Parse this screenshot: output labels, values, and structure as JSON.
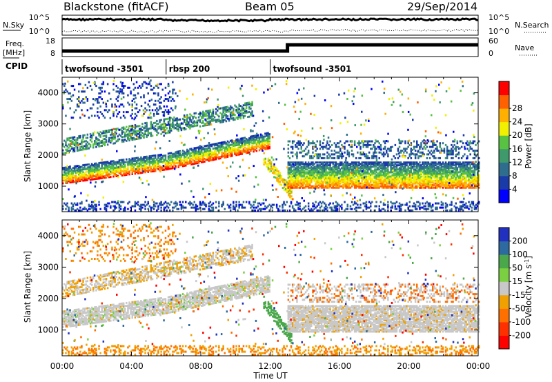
{
  "header": {
    "station": "Blackstone (fitACF)",
    "beam": "Beam 05",
    "date": "29/Sep/2014"
  },
  "summary": {
    "nsky_label": "N.Sky",
    "nsearch_label": "N.Search",
    "freq_label_top": "Freq.",
    "freq_label_unit": "[MHz]",
    "nave_label": "Nave",
    "cpid_label": "CPID",
    "nsky_ticks": [
      "10^5",
      "10^0"
    ],
    "nsearch_ticks": [
      "10^5",
      "10^0"
    ],
    "freq_ticks": [
      "18",
      "8"
    ],
    "nave_ticks": [
      "60",
      "0"
    ],
    "cpid_segments": [
      {
        "label": "twofsound -3501",
        "start": 0,
        "end": 6
      },
      {
        "label": "rbsp 200",
        "start": 6,
        "end": 12
      },
      {
        "label": "twofsound -3501",
        "start": 12,
        "end": 24
      }
    ]
  },
  "chart_data": [
    {
      "type": "heatmap",
      "panel": "power",
      "ylabel": "Slant Range [km]",
      "ylim": [
        180,
        4500
      ],
      "yticks": [
        1000,
        2000,
        3000,
        4000
      ],
      "xlim": [
        0,
        24
      ],
      "colorbar": {
        "label": "Power [dB]",
        "range": [
          0,
          32
        ],
        "ticks": [
          "4",
          "8",
          "12",
          "16",
          "20",
          "24",
          "28"
        ],
        "colors": [
          "#0000ff",
          "#1a3aa8",
          "#2f6d8f",
          "#3e9a6b",
          "#58c242",
          "#f0f000",
          "#ffb000",
          "#ff6000",
          "#ff0000"
        ]
      }
    },
    {
      "type": "heatmap",
      "panel": "velocity",
      "ylabel": "Slant Range [km]",
      "ylim": [
        180,
        4500
      ],
      "yticks": [
        1000,
        2000,
        3000,
        4000
      ],
      "xlim": [
        0,
        24
      ],
      "colorbar": {
        "label_main": "Velocity",
        "label_unit": "[m s",
        "label_sup": "-1",
        "label_close": "]",
        "ticks": [
          "200",
          "100",
          "50",
          "15",
          "-15",
          "-50",
          "-100",
          "-200"
        ],
        "colors": [
          "#2230c0",
          "#2c6aa0",
          "#4aa74a",
          "#7ad040",
          "#c8c8c8",
          "#f0a000",
          "#ff7000",
          "#ff3000",
          "#ff0000"
        ]
      }
    }
  ],
  "xaxis": {
    "ticks": [
      "00:00",
      "04:00",
      "08:00",
      "12:00",
      "16:00",
      "20:00",
      "00:00"
    ],
    "label": "Time UT"
  }
}
